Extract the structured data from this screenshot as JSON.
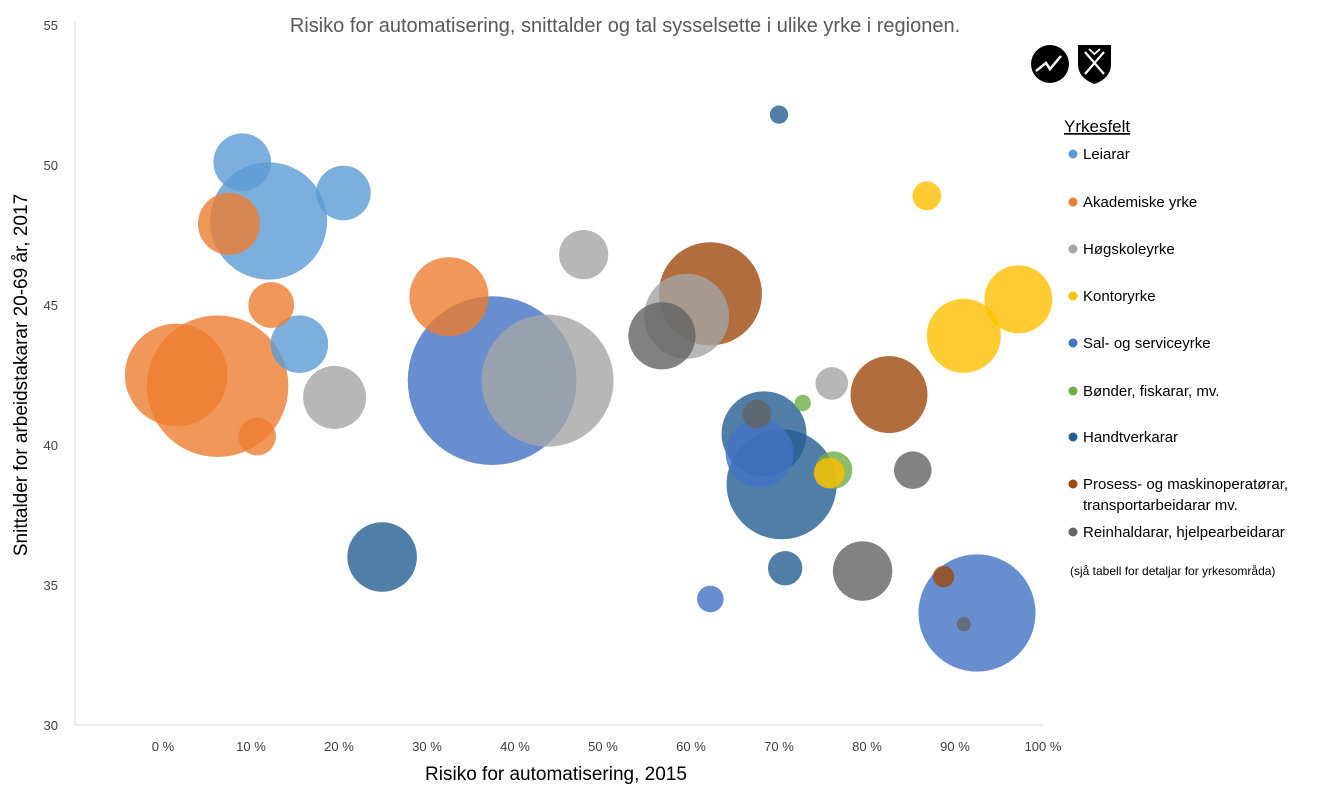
{
  "chart_data": {
    "type": "bubble",
    "title": "Risiko for automatisering, snittalder og tal sysselsette i ulike yrke i regionen.",
    "xlabel": "Risiko for automatisering, 2015",
    "ylabel": "Snittalder for arbeidstakarar 20-69 år, 2017",
    "xlim": [
      -0.1,
      1.0
    ],
    "ylim": [
      30,
      55
    ],
    "x_ticks": [
      "0 %",
      "10 %",
      "20 %",
      "30 %",
      "40 %",
      "50 %",
      "60 %",
      "70 %",
      "80 %",
      "90 %",
      "100 %"
    ],
    "y_ticks": [
      "30",
      "35",
      "40",
      "45",
      "50",
      "55"
    ],
    "grid": false,
    "legend_title": "Yrkesfelt",
    "legend_position": "right",
    "legend_note": "(sjå tabell for detaljar for yrkesområda)",
    "series": [
      {
        "name": "Leiarar",
        "color": "#5B9BD5",
        "points": [
          {
            "x": 0.09,
            "y": 50.1,
            "size": 280
          },
          {
            "x": 0.12,
            "y": 48.0,
            "size": 1250
          },
          {
            "x": 0.205,
            "y": 49.0,
            "size": 250
          },
          {
            "x": 0.155,
            "y": 43.6,
            "size": 280
          }
        ]
      },
      {
        "name": "Akademiske yrke",
        "color": "#ED7D31",
        "points": [
          {
            "x": 0.075,
            "y": 47.9,
            "size": 330
          },
          {
            "x": 0.123,
            "y": 45.0,
            "size": 170
          },
          {
            "x": 0.325,
            "y": 45.3,
            "size": 550
          },
          {
            "x": 0.015,
            "y": 42.5,
            "size": 950
          },
          {
            "x": 0.062,
            "y": 42.1,
            "size": 1850
          },
          {
            "x": 0.107,
            "y": 40.3,
            "size": 110
          }
        ]
      },
      {
        "name": "Høgskoleyrke",
        "color": "#A5A5A5",
        "points": [
          {
            "x": 0.478,
            "y": 46.8,
            "size": 200
          },
          {
            "x": 0.595,
            "y": 44.6,
            "size": 640
          },
          {
            "x": 0.195,
            "y": 41.7,
            "size": 340
          },
          {
            "x": 0.437,
            "y": 42.3,
            "size": 1600
          },
          {
            "x": 0.76,
            "y": 42.2,
            "size": 80
          }
        ]
      },
      {
        "name": "Kontoryrke",
        "color": "#FFC000",
        "points": [
          {
            "x": 0.868,
            "y": 48.9,
            "size": 60
          },
          {
            "x": 0.972,
            "y": 45.2,
            "size": 400
          },
          {
            "x": 0.91,
            "y": 43.9,
            "size": 480
          },
          {
            "x": 0.757,
            "y": 39.0,
            "size": 70
          }
        ]
      },
      {
        "name": "Sal- og serviceyrke",
        "color": "#4472C4",
        "points": [
          {
            "x": 0.374,
            "y": 42.3,
            "size": 2650
          },
          {
            "x": 0.678,
            "y": 39.7,
            "size": 400
          },
          {
            "x": 0.622,
            "y": 34.5,
            "size": 50
          },
          {
            "x": 0.925,
            "y": 34.0,
            "size": 1250
          }
        ]
      },
      {
        "name": "Bønder, fiskarar, mv.",
        "color": "#70AD47",
        "points": [
          {
            "x": 0.727,
            "y": 41.5,
            "size": 15
          },
          {
            "x": 0.762,
            "y": 39.1,
            "size": 110
          }
        ]
      },
      {
        "name": "Handtverkarar",
        "color": "#255E91",
        "points": [
          {
            "x": 0.7,
            "y": 51.8,
            "size": 20
          },
          {
            "x": 0.683,
            "y": 40.4,
            "size": 640
          },
          {
            "x": 0.703,
            "y": 38.6,
            "size": 1100
          },
          {
            "x": 0.249,
            "y": 36.0,
            "size": 420
          },
          {
            "x": 0.707,
            "y": 35.6,
            "size": 90
          }
        ]
      },
      {
        "name": "Prosess- og maskinoperatørar, transportarbeidarar mv.",
        "color": "#9E480E",
        "points": [
          {
            "x": 0.622,
            "y": 45.4,
            "size": 960
          },
          {
            "x": 0.825,
            "y": 41.8,
            "size": 520
          },
          {
            "x": 0.887,
            "y": 35.3,
            "size": 30
          }
        ]
      },
      {
        "name": "Reinhaldarar, hjelpearbeidarar",
        "color": "#636363",
        "points": [
          {
            "x": 0.567,
            "y": 43.9,
            "size": 390
          },
          {
            "x": 0.675,
            "y": 41.1,
            "size": 60
          },
          {
            "x": 0.852,
            "y": 39.1,
            "size": 110
          },
          {
            "x": 0.795,
            "y": 35.5,
            "size": 300
          },
          {
            "x": 0.91,
            "y": 33.6,
            "size": 10
          }
        ]
      }
    ]
  }
}
